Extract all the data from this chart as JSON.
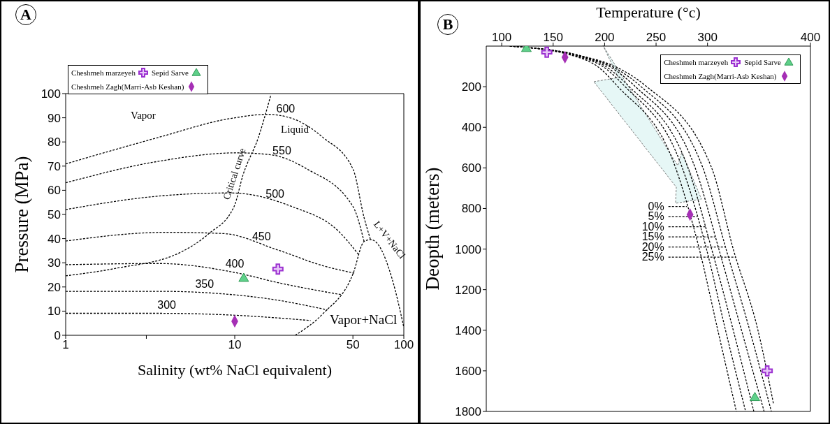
{
  "chart_data": [
    {
      "type": "line",
      "title": "A",
      "xlabel": "Salinity (wt% NaCl equivalent)",
      "ylabel": "Pressure  (MPa)",
      "log": "x",
      "xlim": [
        1,
        100
      ],
      "xticks": [
        1,
        {
          "value": 3,
          "label": null
        },
        10,
        50,
        100
      ],
      "ylim": [
        0,
        100
      ],
      "yticks": [
        0,
        10,
        20,
        30,
        40,
        50,
        60,
        70,
        80,
        90,
        100
      ],
      "line_style": "dashed",
      "legend": "top left",
      "series": [
        {
          "color": "#000000",
          "x": [
            1,
            3.55,
            10,
            28.1
          ],
          "values": [
            9.1,
            9.1,
            8.3,
            6.1
          ]
        },
        {
          "color": "#000000",
          "x": [
            1,
            3.55,
            14.4,
            35.4
          ],
          "values": [
            18.2,
            18.2,
            15.5,
            10.5
          ]
        },
        {
          "color": "#000000",
          "x": [
            1,
            3.55,
            10,
            18.5,
            42.7
          ],
          "values": [
            29.2,
            29.7,
            26.0,
            21.6,
            16.8
          ]
        },
        {
          "color": "#000000",
          "x": [
            1,
            3.92,
            8.56,
            17.8,
            33.2,
            50.9
          ],
          "values": [
            39,
            42.6,
            42.1,
            35.4,
            28.8,
            25.7
          ]
        },
        {
          "color": "#000000",
          "x": [
            1,
            3.55,
            9.43,
            21.9,
            40.9,
            54.3
          ],
          "values": [
            52,
            57.6,
            58.9,
            53.2,
            43.2,
            33.2
          ]
        },
        {
          "color": "#000000",
          "x": [
            1,
            3.55,
            10.3,
            16.3,
            26.9,
            50.1,
            58.2
          ],
          "values": [
            63.1,
            72,
            75.5,
            74.7,
            68.7,
            53.2,
            38.8
          ]
        },
        {
          "color": "#000000",
          "x": [
            1,
            3.55,
            9.43,
            15.7,
            21.9,
            33.2,
            50.1,
            58.2,
            63.7
          ],
          "values": [
            70.9,
            81.9,
            89.7,
            91.4,
            89.7,
            81.9,
            68.7,
            48.7,
            39.3
          ]
        },
        {
          "color": "#000000",
          "x": [
            1,
            1.98,
            4.77,
            7.04,
            9.9,
            11.2,
            13.8,
            16.3
          ],
          "values": [
            24.6,
            27.7,
            34.3,
            42.1,
            53.2,
            66.4,
            81.9,
            99.1
          ]
        },
        {
          "color": "#000000",
          "x": [
            22.8,
            33.2,
            50.1,
            58.2,
            63.7,
            70.4,
            85.3,
            100
          ],
          "values": [
            0,
            8.9,
            25.5,
            38.8,
            39.6,
            37.6,
            23.3,
            3.3
          ]
        },
        {
          "type": "scatter",
          "name": "Cheshmeh marzeyeh",
          "marker": "cross",
          "color": "#9b30d0",
          "x": [
            18.0
          ],
          "values": [
            27.4
          ]
        },
        {
          "type": "scatter",
          "name": "Sepid Sarve",
          "marker": "triangle",
          "color": "#5fd08a",
          "x": [
            11.3
          ],
          "values": [
            23.7
          ]
        },
        {
          "type": "scatter",
          "name": "Cheshmeh Zagh(Marri-Asb Keshan)",
          "marker": "diamond",
          "color": "#a52fb5",
          "x": [
            10
          ],
          "values": [
            5.8
          ]
        }
      ],
      "annotations": [
        {
          "text": "300",
          "x": 3.96,
          "y": 9.1
        },
        {
          "text": "350",
          "x": 6.63,
          "y": 17.6
        },
        {
          "text": "400",
          "x": 10,
          "y": 26.0
        },
        {
          "text": "450",
          "x": 14.4,
          "y": 37.3
        },
        {
          "text": "500",
          "x": 17.3,
          "y": 54.8
        },
        {
          "text": "550",
          "x": 19,
          "y": 72.8
        },
        {
          "text": "600",
          "x": 20,
          "y": 90.2
        },
        {
          "text": "Critical curve",
          "x": 11.2,
          "y": 66.4
        },
        {
          "text": "L+V+NaCl",
          "x": 70.4,
          "y": 37.6
        },
        "Vapor",
        "Liquid",
        "Vapor+NaCl"
      ]
    },
    {
      "type": "line",
      "title": "B",
      "xlabel": "Temperature (°c)",
      "ylabel": "Deopth (meters)",
      "xlim": [
        85,
        400
      ],
      "xticks": [
        100,
        150,
        200,
        250,
        300,
        400
      ],
      "ylim": [
        1800,
        0
      ],
      "yticks": [
        200,
        400,
        600,
        800,
        1000,
        1200,
        1400,
        1600,
        1800
      ],
      "line_style": "dashed",
      "legend": "top right",
      "series": [
        {
          "color": "#000000",
          "x": [
            108,
            171,
            193,
            213,
            269,
            292,
            310,
            328
          ],
          "values": [
            0,
            50,
            100,
            200,
            600,
            1000,
            1400,
            1800
          ]
        },
        {
          "color": "#000000",
          "x": [
            108,
            173,
            198,
            220,
            275.5,
            299,
            317.5,
            337
          ],
          "values": [
            0,
            50,
            100,
            200,
            600,
            1000,
            1400,
            1800
          ]
        },
        {
          "color": "#000000",
          "x": [
            108,
            175.5,
            201,
            224,
            281,
            304,
            325,
            345
          ],
          "values": [
            0,
            50,
            100,
            200,
            600,
            1000,
            1400,
            1800
          ]
        },
        {
          "color": "#000000",
          "x": [
            108,
            177,
            204.5,
            230,
            288,
            311,
            333,
            355
          ],
          "values": [
            0,
            50,
            100,
            200,
            600,
            1000,
            1400,
            1800
          ]
        },
        {
          "color": "#000000",
          "x": [
            108,
            178,
            207,
            235.5,
            295.5,
            318,
            341,
            362
          ],
          "values": [
            0,
            50,
            100,
            200,
            600,
            1000,
            1400,
            1800
          ]
        },
        {
          "color": "#000000",
          "x": [
            108,
            179,
            210,
            241,
            304,
            325,
            349,
            364
          ],
          "values": [
            0,
            50,
            100,
            200,
            600,
            1000,
            1400,
            1760
          ]
        },
        {
          "color": "#000000",
          "x": [
            262,
            280
          ],
          "values": [
            790,
            790
          ]
        },
        {
          "color": "#000000",
          "x": [
            262,
            290
          ],
          "values": [
            840,
            840
          ]
        },
        {
          "color": "#000000",
          "x": [
            262,
            298
          ],
          "values": [
            890,
            890
          ]
        },
        {
          "color": "#000000",
          "x": [
            262,
            307.5
          ],
          "values": [
            940,
            940
          ]
        },
        {
          "color": "#000000",
          "x": [
            262,
            317.4
          ],
          "values": [
            990,
            990
          ]
        },
        {
          "color": "#000000",
          "x": [
            262,
            327.4
          ],
          "values": [
            1040,
            1040
          ]
        },
        {
          "type": "scatter",
          "name": "Cheshmeh marzeyeh",
          "marker": "cross",
          "color": "#9b30d0",
          "x": [
            143.8,
            358
          ],
          "values": [
            30,
            1600
          ]
        },
        {
          "type": "scatter",
          "name": "Sepid Sarve",
          "marker": "triangle",
          "color": "#5fd08a",
          "x": [
            124,
            346
          ],
          "values": [
            10,
            1730
          ]
        },
        {
          "type": "scatter",
          "name": "Cheshmeh Zagh(Marri-Asb Keshan)",
          "marker": "diamond",
          "color": "#a52fb5",
          "x": [
            161.5,
            283
          ],
          "values": [
            55,
            830
          ]
        }
      ],
      "annotations": [
        {
          "text": "0%",
          "x": 262,
          "y": 790
        },
        {
          "text": "5%",
          "x": 262,
          "y": 840
        },
        {
          "text": "10%",
          "x": 262,
          "y": 890
        },
        {
          "text": "15%",
          "x": 262,
          "y": 940
        },
        {
          "text": "20%",
          "x": 262,
          "y": 990
        },
        {
          "text": "25%",
          "x": 262,
          "y": 1040
        }
      ]
    }
  ]
}
